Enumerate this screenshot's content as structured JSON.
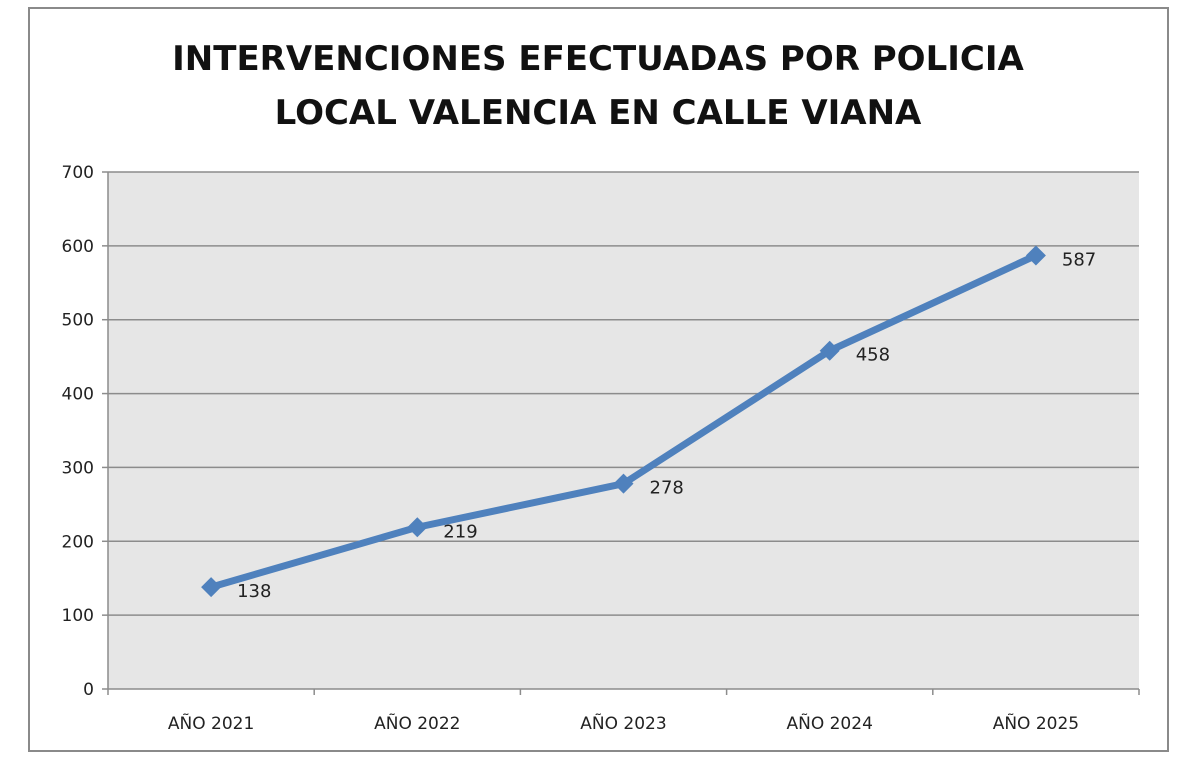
{
  "chart_data": {
    "type": "line",
    "title_lines": [
      "INTERVENCIONES EFECTUADAS POR POLICIA",
      "LOCAL VALENCIA EN CALLE VIANA"
    ],
    "categories": [
      "AÑO 2021",
      "AÑO 2022",
      "AÑO 2023",
      "AÑO 2024",
      "AÑO 2025"
    ],
    "values": [
      138,
      219,
      278,
      458,
      587
    ],
    "data_labels": [
      "138",
      "219",
      "278",
      "458",
      "587"
    ],
    "ylim": [
      0,
      700
    ],
    "yticks": [
      0,
      100,
      200,
      300,
      400,
      500,
      600,
      700
    ],
    "ytick_labels": [
      "0",
      "100",
      "200",
      "300",
      "400",
      "500",
      "600",
      "700"
    ],
    "grid": true,
    "marker": "diamond",
    "legend": "none",
    "colors": {
      "line": "#4f81bd",
      "plot_background": "#e6e6e6",
      "grid": "#8c8c8c"
    }
  }
}
